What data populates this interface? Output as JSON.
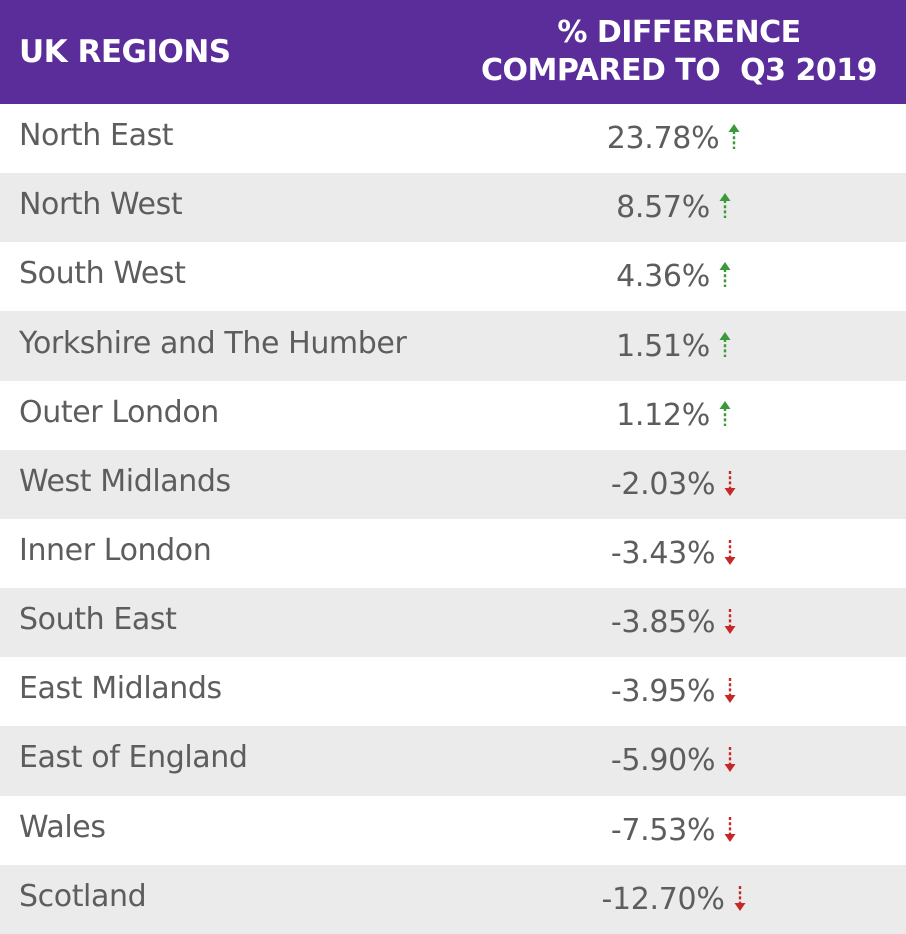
{
  "header": {
    "region_label": "UK REGIONS",
    "diff_label_line1": "% DIFFERENCE",
    "diff_label_line2": "COMPARED TO  Q3 2019"
  },
  "colors": {
    "header_bg": "#5a2d9a",
    "up": "#3a9a3a",
    "down": "#c62828",
    "row_alt": "#ebebeb"
  },
  "chart_data": {
    "type": "table",
    "columns": [
      "UK REGIONS",
      "% DIFFERENCE COMPARED TO  Q3 2019"
    ],
    "rows": [
      {
        "region": "North East",
        "value": "23.78%",
        "direction": "up"
      },
      {
        "region": "North West",
        "value": "8.57%",
        "direction": "up"
      },
      {
        "region": "South West",
        "value": "4.36%",
        "direction": "up"
      },
      {
        "region": "Yorkshire and The Humber",
        "value": "1.51%",
        "direction": "up"
      },
      {
        "region": "Outer London",
        "value": "1.12%",
        "direction": "up"
      },
      {
        "region": "West Midlands",
        "value": "-2.03%",
        "direction": "down"
      },
      {
        "region": "Inner London",
        "value": "-3.43%",
        "direction": "down"
      },
      {
        "region": "South East",
        "value": "-3.85%",
        "direction": "down"
      },
      {
        "region": "East Midlands",
        "value": "-3.95%",
        "direction": "down"
      },
      {
        "region": "East of England",
        "value": "-5.90%",
        "direction": "down"
      },
      {
        "region": "Wales",
        "value": "-7.53%",
        "direction": "down"
      },
      {
        "region": "Scotland",
        "value": "-12.70%",
        "direction": "down"
      }
    ]
  }
}
